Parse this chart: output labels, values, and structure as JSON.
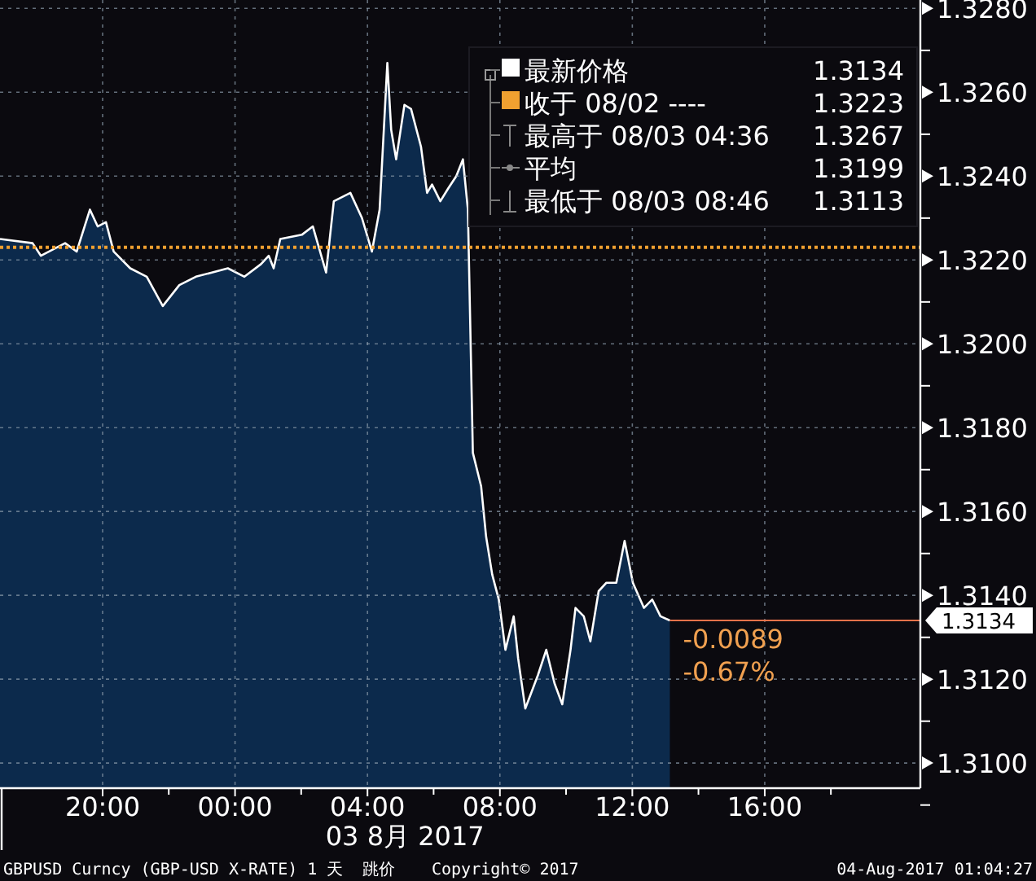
{
  "chart_data": {
    "type": "area",
    "xlabel": "03 8月 2017",
    "xlim": [
      "2017-08-02T16:54",
      "2017-08-03T20:42"
    ],
    "ylim": [
      1.3094,
      1.3282
    ],
    "xticks": [
      {
        "value": "2017-08-02T20:00",
        "label": "20:00"
      },
      {
        "value": "2017-08-03T00:00",
        "label": "00:00"
      },
      {
        "value": "2017-08-03T04:00",
        "label": "04:00"
      },
      {
        "value": "2017-08-03T08:00",
        "label": "08:00"
      },
      {
        "value": "2017-08-03T12:00",
        "label": "12:00"
      },
      {
        "value": "2017-08-03T16:00",
        "label": "16:00"
      }
    ],
    "yticks": [
      {
        "value": 1.31,
        "label": "1.3100"
      },
      {
        "value": 1.312,
        "label": "1.3120"
      },
      {
        "value": 1.314,
        "label": "1.3140"
      },
      {
        "value": 1.316,
        "label": "1.3160"
      },
      {
        "value": 1.318,
        "label": "1.3180"
      },
      {
        "value": 1.32,
        "label": "1.3200"
      },
      {
        "value": 1.322,
        "label": "1.3220"
      },
      {
        "value": 1.324,
        "label": "1.3240"
      },
      {
        "value": 1.326,
        "label": "1.3260"
      },
      {
        "value": 1.328,
        "label": "1.3280"
      }
    ],
    "grid": true,
    "legend": "top right",
    "series": [
      {
        "name": "最新价格",
        "color": "#ffffff",
        "x": [
          "2017-08-02T16:54",
          "2017-08-02T17:53",
          "2017-08-02T18:08",
          "2017-08-02T18:52",
          "2017-08-02T19:13",
          "2017-08-02T19:37",
          "2017-08-02T19:51",
          "2017-08-02T20:06",
          "2017-08-02T20:20",
          "2017-08-02T20:50",
          "2017-08-02T21:20",
          "2017-08-02T21:49",
          "2017-08-02T22:19",
          "2017-08-02T22:49",
          "2017-08-02T23:18",
          "2017-08-02T23:47",
          "2017-08-03T00:17",
          "2017-08-03T00:47",
          "2017-08-03T01:01",
          "2017-08-03T01:10",
          "2017-08-03T01:22",
          "2017-08-03T02:01",
          "2017-08-03T02:21",
          "2017-08-03T02:45",
          "2017-08-03T02:59",
          "2017-08-03T03:29",
          "2017-08-03T03:50",
          "2017-08-03T04:08",
          "2017-08-03T04:22",
          "2017-08-03T04:36",
          "2017-08-03T04:43",
          "2017-08-03T04:52",
          "2017-08-03T05:07",
          "2017-08-03T05:19",
          "2017-08-03T05:37",
          "2017-08-03T05:48",
          "2017-08-03T05:57",
          "2017-08-03T06:12",
          "2017-08-03T06:26",
          "2017-08-03T06:41",
          "2017-08-03T06:53",
          "2017-08-03T07:02",
          "2017-08-03T07:11",
          "2017-08-03T07:26",
          "2017-08-03T07:35",
          "2017-08-03T07:46",
          "2017-08-03T07:58",
          "2017-08-03T08:10",
          "2017-08-03T08:25",
          "2017-08-03T08:33",
          "2017-08-03T08:46",
          "2017-08-03T09:09",
          "2017-08-03T09:24",
          "2017-08-03T09:39",
          "2017-08-03T09:53",
          "2017-08-03T10:08",
          "2017-08-03T10:17",
          "2017-08-03T10:32",
          "2017-08-03T10:44",
          "2017-08-03T10:59",
          "2017-08-03T11:13",
          "2017-08-03T11:31",
          "2017-08-03T11:46",
          "2017-08-03T12:01",
          "2017-08-03T12:21",
          "2017-08-03T12:36",
          "2017-08-03T12:51",
          "2017-08-03T13:08"
        ],
        "values": [
          1.3225,
          1.3224,
          1.3221,
          1.3224,
          1.3222,
          1.3232,
          1.3228,
          1.3229,
          1.3222,
          1.3218,
          1.3216,
          1.3209,
          1.3214,
          1.3216,
          1.3217,
          1.3218,
          1.3216,
          1.3219,
          1.3221,
          1.3218,
          1.3225,
          1.3226,
          1.3228,
          1.3217,
          1.3234,
          1.3236,
          1.323,
          1.3222,
          1.3232,
          1.3267,
          1.3251,
          1.3244,
          1.3257,
          1.3256,
          1.3247,
          1.3236,
          1.3238,
          1.3234,
          1.3237,
          1.324,
          1.3244,
          1.3232,
          1.3174,
          1.3166,
          1.3154,
          1.3145,
          1.3139,
          1.3127,
          1.3135,
          1.3125,
          1.3113,
          1.3121,
          1.3127,
          1.3119,
          1.3114,
          1.3127,
          1.3137,
          1.3135,
          1.3129,
          1.3141,
          1.3143,
          1.3143,
          1.3153,
          1.3143,
          1.3137,
          1.3139,
          1.3135,
          1.3134
        ]
      }
    ],
    "ref_lines": [
      {
        "axis": "y",
        "value": 1.3223,
        "label": "收于 08/02 ----",
        "color": "#f0a030",
        "line_style": "dotted"
      },
      {
        "axis": "y",
        "value": 1.3134,
        "label": "1.3134",
        "color": "#e8724a",
        "line_style": "solid"
      }
    ],
    "annotations": [
      "1.3134",
      "1.3223",
      "最高于 08/03 04:36",
      "1.3267",
      "平均",
      "1.3199",
      "最低于 08/03 08:46",
      "1.3113",
      "-0.0089",
      "-0.67%",
      "GBPUSD Curncy (GBP-USD X-RATE) 1 天  跳价",
      "Copyright© 2017",
      "04-Aug-2017 01:04:27"
    ]
  }
}
